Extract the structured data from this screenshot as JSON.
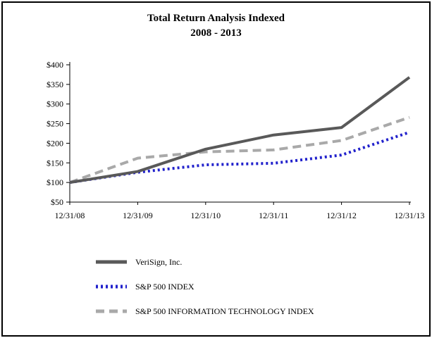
{
  "chart_data": {
    "type": "line",
    "title": "Total Return Analysis Indexed",
    "subtitle": "2008 - 2013",
    "xlabel": "",
    "ylabel": "",
    "grid": false,
    "legend_position": "bottom-left",
    "x": [
      "12/31/08",
      "12/31/09",
      "12/31/10",
      "12/31/11",
      "12/31/12",
      "12/31/13"
    ],
    "series": [
      {
        "name": "VeriSign, Inc.",
        "values": [
          100,
          128,
          185,
          221,
          240,
          368
        ],
        "color": "#595959",
        "dash": "solid",
        "width": 4
      },
      {
        "name": "S&P 500 INDEX",
        "values": [
          100,
          126,
          145,
          149,
          170,
          228
        ],
        "color": "#2222cc",
        "dash": "dotted",
        "width": 4
      },
      {
        "name": "S&P 500 INFORMATION TECHNOLOGY INDEX",
        "values": [
          100,
          162,
          178,
          183,
          207,
          266
        ],
        "color": "#a9a9a9",
        "dash": "dashed",
        "width": 4
      }
    ],
    "ylim": [
      50,
      400
    ],
    "ytick_step": 50,
    "ytick_labels": [
      "$50",
      "$100",
      "$150",
      "$200",
      "$250",
      "$300",
      "$350",
      "$400"
    ]
  }
}
